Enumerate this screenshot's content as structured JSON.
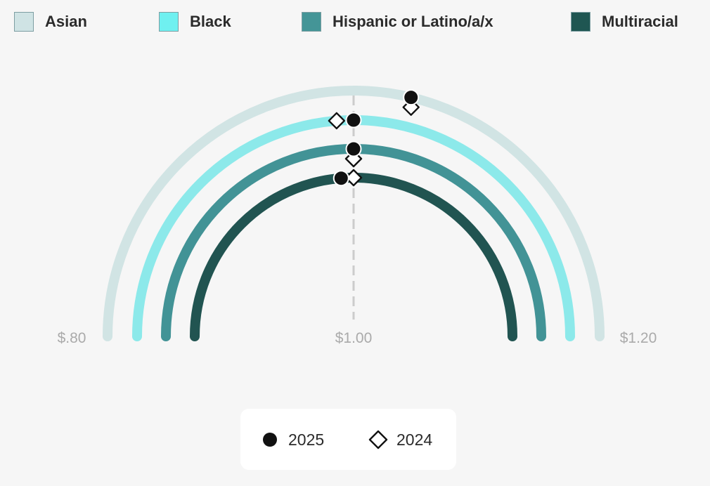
{
  "chart_data": {
    "type": "radial-dumbbell",
    "categories": [
      "Asian",
      "Black",
      "Hispanic or Latino/a/x",
      "Multiracial"
    ],
    "colors": {
      "Asian": "#cfe3e4",
      "Black": "#6ff0f0",
      "Hispanic or Latino/a/x": "#449597",
      "Multiracial": "#1f5652"
    },
    "arc_colors": {
      "Asian": "#d1e4e4",
      "Black": "#8ce9ea",
      "Hispanic or Latino/a/x": "#429396",
      "Multiracial": "#215451"
    },
    "series": [
      {
        "name": "2025",
        "marker": "filled-circle",
        "values": [
          1.03,
          1.0,
          1.0,
          0.99
        ]
      },
      {
        "name": "2024",
        "marker": "hollow-diamond",
        "values": [
          1.03,
          0.99,
          1.0,
          1.0
        ]
      }
    ],
    "axis": {
      "min": 0.8,
      "max": 1.2,
      "ticks": [
        {
          "value": 0.8,
          "label": "$.80"
        },
        {
          "value": 1.0,
          "label": "$1.00"
        },
        {
          "value": 1.2,
          "label": "$1.20"
        }
      ],
      "reference_line": 1.0
    },
    "legend_position": "top",
    "marker_legend_position": "bottom-center"
  }
}
